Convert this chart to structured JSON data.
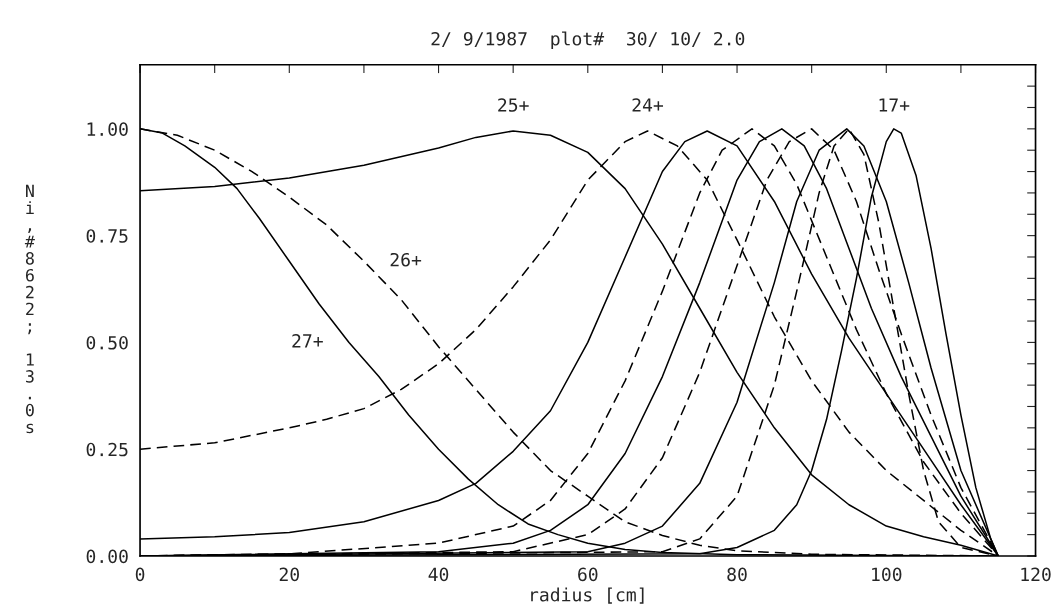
{
  "chart_data": {
    "type": "line",
    "title": "2/ 9/1987  plot#  30/ 10/ 2.0",
    "xlabel": "radius [cm]",
    "ylabel": "Ni,#8622; 13.0s",
    "xlim": [
      0,
      120
    ],
    "ylim": [
      0,
      1.15
    ],
    "xticks": [
      0,
      {
        "value": 10,
        "label": null
      },
      20,
      {
        "value": 30,
        "label": null
      },
      40,
      {
        "value": 50,
        "label": null
      },
      60,
      {
        "value": 70,
        "label": null
      },
      80,
      {
        "value": 90,
        "label": null
      },
      100,
      {
        "value": 110,
        "label": null
      },
      120
    ],
    "yticks": [
      {
        "value": 0,
        "label": "0.00"
      },
      {
        "value": 0.05,
        "label": null
      },
      {
        "value": 0.1,
        "label": null
      },
      {
        "value": 0.15,
        "label": null
      },
      {
        "value": 0.2,
        "label": null
      },
      {
        "value": 0.25,
        "label": "0.25"
      },
      {
        "value": 0.3,
        "label": null
      },
      {
        "value": 0.35,
        "label": null
      },
      {
        "value": 0.4,
        "label": null
      },
      {
        "value": 0.45,
        "label": null
      },
      {
        "value": 0.5,
        "label": "0.50"
      },
      {
        "value": 0.55,
        "label": null
      },
      {
        "value": 0.6,
        "label": null
      },
      {
        "value": 0.65,
        "label": null
      },
      {
        "value": 0.7,
        "label": null
      },
      {
        "value": 0.75,
        "label": "0.75"
      },
      {
        "value": 0.8,
        "label": null
      },
      {
        "value": 0.85,
        "label": null
      },
      {
        "value": 0.9,
        "label": null
      },
      {
        "value": 0.95,
        "label": null
      },
      {
        "value": 1.0,
        "label": "1.00"
      },
      {
        "value": 1.05,
        "label": null
      },
      {
        "value": 1.1,
        "label": null
      }
    ],
    "grid": false,
    "legend": false,
    "series": [
      {
        "name": "27+",
        "color": "#000000",
        "line_style": "solid",
        "x": [
          0,
          3,
          6,
          10,
          13,
          16,
          20,
          24,
          28,
          32,
          36,
          40,
          44,
          48,
          52,
          56,
          60,
          65,
          70,
          80,
          100,
          115
        ],
        "values": [
          1.0,
          0.99,
          0.96,
          0.91,
          0.86,
          0.79,
          0.69,
          0.59,
          0.5,
          0.42,
          0.33,
          0.25,
          0.18,
          0.12,
          0.075,
          0.05,
          0.03,
          0.015,
          0.008,
          0.003,
          0.001,
          0
        ]
      },
      {
        "name": "26+",
        "color": "#000000",
        "line_style": "dashed",
        "x": [
          0,
          5,
          10,
          15,
          20,
          25,
          30,
          35,
          40,
          45,
          50,
          55,
          60,
          65,
          70,
          75,
          80,
          90,
          115
        ],
        "values": [
          1.0,
          0.985,
          0.95,
          0.9,
          0.84,
          0.775,
          0.69,
          0.6,
          0.49,
          0.39,
          0.29,
          0.2,
          0.14,
          0.08,
          0.048,
          0.025,
          0.012,
          0.004,
          0
        ]
      },
      {
        "name": "25+",
        "color": "#000000",
        "line_style": "solid",
        "x": [
          0,
          10,
          20,
          30,
          40,
          45,
          50,
          55,
          60,
          65,
          70,
          75,
          80,
          85,
          90,
          95,
          100,
          105,
          110,
          115
        ],
        "values": [
          0.855,
          0.865,
          0.885,
          0.915,
          0.955,
          0.98,
          0.995,
          0.985,
          0.945,
          0.86,
          0.73,
          0.58,
          0.43,
          0.3,
          0.19,
          0.12,
          0.07,
          0.045,
          0.025,
          0
        ]
      },
      {
        "name": "24+",
        "color": "#000000",
        "line_style": "dashed",
        "x": [
          0,
          10,
          20,
          25,
          30,
          35,
          40,
          45,
          50,
          55,
          60,
          65,
          68,
          72,
          76,
          80,
          85,
          90,
          95,
          100,
          105,
          110,
          115
        ],
        "values": [
          0.25,
          0.265,
          0.3,
          0.32,
          0.345,
          0.39,
          0.45,
          0.53,
          0.63,
          0.74,
          0.88,
          0.97,
          0.995,
          0.96,
          0.88,
          0.74,
          0.56,
          0.41,
          0.29,
          0.2,
          0.13,
          0.06,
          0
        ]
      },
      {
        "color": "#000000",
        "line_style": "solid",
        "x": [
          0,
          10,
          20,
          30,
          40,
          45,
          50,
          55,
          60,
          65,
          70,
          73,
          76,
          80,
          85,
          90,
          95,
          100,
          105,
          110,
          115
        ],
        "values": [
          0.04,
          0.045,
          0.055,
          0.08,
          0.13,
          0.17,
          0.245,
          0.34,
          0.5,
          0.7,
          0.9,
          0.97,
          0.995,
          0.96,
          0.83,
          0.66,
          0.51,
          0.38,
          0.25,
          0.12,
          0
        ]
      },
      {
        "color": "#000000",
        "line_style": "dashed",
        "x": [
          0,
          20,
          40,
          50,
          55,
          60,
          65,
          70,
          75,
          78,
          82,
          85,
          88,
          92,
          96,
          100,
          105,
          110,
          115
        ],
        "values": [
          0.0,
          0.005,
          0.03,
          0.07,
          0.13,
          0.24,
          0.41,
          0.62,
          0.85,
          0.95,
          1.0,
          0.96,
          0.87,
          0.7,
          0.53,
          0.38,
          0.22,
          0.1,
          0
        ]
      },
      {
        "color": "#000000",
        "line_style": "solid",
        "x": [
          0,
          40,
          50,
          55,
          60,
          65,
          70,
          75,
          80,
          83,
          86,
          89,
          92,
          95,
          98,
          102,
          106,
          110,
          115
        ],
        "values": [
          0,
          0.01,
          0.03,
          0.06,
          0.12,
          0.24,
          0.42,
          0.64,
          0.88,
          0.97,
          1.0,
          0.96,
          0.86,
          0.72,
          0.58,
          0.42,
          0.28,
          0.14,
          0
        ]
      },
      {
        "color": "#000000",
        "line_style": "dashed",
        "x": [
          0,
          50,
          60,
          65,
          70,
          75,
          80,
          84,
          87,
          90,
          93,
          96,
          99,
          102,
          106,
          110,
          115
        ],
        "values": [
          0,
          0.01,
          0.05,
          0.11,
          0.23,
          0.43,
          0.68,
          0.88,
          0.97,
          1.0,
          0.95,
          0.83,
          0.67,
          0.52,
          0.33,
          0.16,
          0
        ]
      },
      {
        "color": "#000000",
        "line_style": "solid",
        "x": [
          0,
          60,
          65,
          70,
          75,
          80,
          85,
          88,
          91,
          94.7,
          97,
          100,
          103,
          106,
          110,
          115
        ],
        "values": [
          0,
          0.01,
          0.03,
          0.07,
          0.17,
          0.36,
          0.64,
          0.83,
          0.95,
          1.0,
          0.96,
          0.83,
          0.64,
          0.44,
          0.2,
          0
        ]
      },
      {
        "color": "#000000",
        "line_style": "dashed",
        "x": [
          0,
          70,
          75,
          80,
          85,
          88,
          91,
          93,
          95,
          97,
          99,
          101,
          103,
          105,
          107,
          110,
          115
        ],
        "values": [
          0,
          0.01,
          0.04,
          0.14,
          0.4,
          0.62,
          0.85,
          0.96,
          1.0,
          0.94,
          0.78,
          0.58,
          0.38,
          0.2,
          0.08,
          0.02,
          0
        ]
      },
      {
        "name": "17+",
        "color": "#000000",
        "line_style": "solid",
        "x": [
          0,
          75,
          80,
          85,
          88,
          90,
          92,
          94,
          96,
          98,
          100,
          101,
          102,
          104,
          106,
          108,
          110,
          112,
          114,
          115
        ],
        "values": [
          0,
          0.005,
          0.02,
          0.06,
          0.12,
          0.2,
          0.32,
          0.48,
          0.65,
          0.84,
          0.97,
          1.0,
          0.99,
          0.89,
          0.72,
          0.52,
          0.33,
          0.16,
          0.04,
          0
        ]
      }
    ]
  }
}
